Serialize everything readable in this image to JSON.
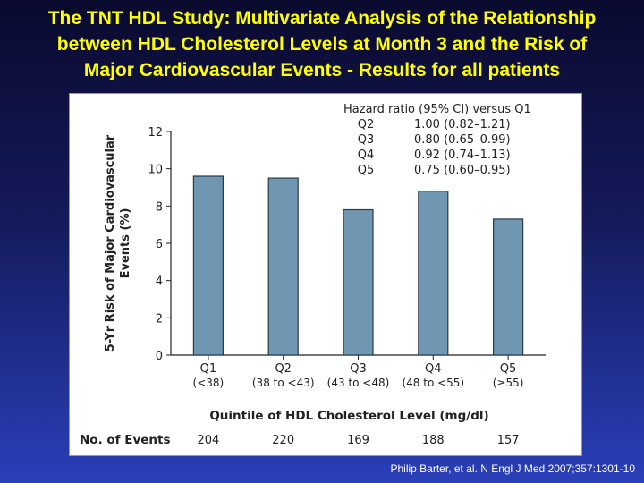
{
  "slide": {
    "title_lines": [
      "The TNT HDL Study: Multivariate Analysis of the Relationship",
      "between HDL Cholesterol Levels at Month 3 and the Risk of",
      "Major Cardiovascular Events - Results for all patients"
    ],
    "citation": "Philip Barter, et al. N Engl J Med 2007;357:1301-10"
  },
  "colors": {
    "title": "#ffff00",
    "bar_fill": "#6f97b2",
    "bar_stroke": "#2a3a48",
    "axis": "#222222"
  },
  "chart_data": {
    "type": "bar",
    "title": "",
    "ylabel": "5-Yr Risk of Major Cardiovascular Events (%)",
    "ylabel_lines": [
      "5-Yr Risk of Major Cardiovascular",
      "Events (%)"
    ],
    "xlabel": "Quintile of HDL Cholesterol Level (mg/dl)",
    "ylim": [
      0,
      12
    ],
    "yticks": [
      0,
      2,
      4,
      6,
      8,
      10,
      12
    ],
    "categories": [
      "Q1",
      "Q2",
      "Q3",
      "Q4",
      "Q5"
    ],
    "category_ranges": [
      "(<38)",
      "(38 to <43)",
      "(43 to <48)",
      "(48 to <55)",
      "(≥55)"
    ],
    "values": [
      9.6,
      9.5,
      7.8,
      8.8,
      7.3
    ],
    "hazard_ratio": {
      "header": "Hazard ratio (95% CI) versus Q1",
      "rows": [
        {
          "quintile": "Q2",
          "value": "1.00 (0.82–1.21)"
        },
        {
          "quintile": "Q3",
          "value": "0.80 (0.65–0.99)"
        },
        {
          "quintile": "Q4",
          "value": "0.92 (0.74–1.13)"
        },
        {
          "quintile": "Q5",
          "value": "0.75 (0.60–0.95)"
        }
      ]
    },
    "events": {
      "label": "No. of Events",
      "values": [
        "204",
        "220",
        "169",
        "188",
        "157"
      ]
    }
  }
}
